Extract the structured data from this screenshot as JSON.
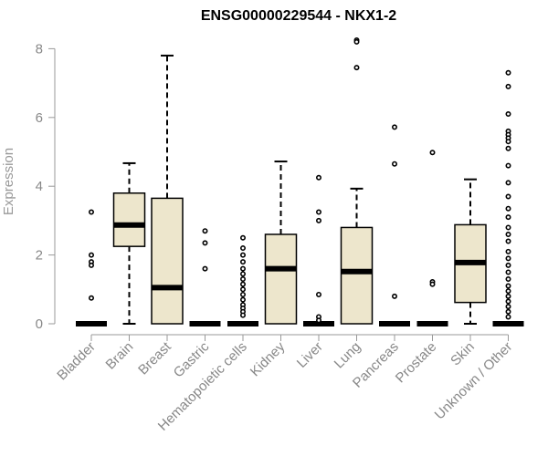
{
  "chart_data": {
    "type": "boxplot",
    "title": "ENSG00000229544 - NKX1-2",
    "xlabel": "",
    "ylabel": "Expression",
    "ylim": [
      0,
      8.2
    ],
    "yticks": [
      0,
      2,
      4,
      6,
      8
    ],
    "grid": false,
    "box_color": "#ede6cc",
    "median_color": "#000000",
    "categories": [
      "Bladder",
      "Brain",
      "Breast",
      "Gastric",
      "Hematopoietic cells",
      "Kidney",
      "Liver",
      "Lung",
      "Pancreas",
      "Prostate",
      "Skin",
      "Unknown / Other"
    ],
    "boxes": [
      {
        "whisker_low": 0,
        "q1": 0,
        "median": 0,
        "q3": 0,
        "whisker_high": 0,
        "outliers": [
          3.25,
          2.0,
          1.8,
          1.7,
          0.75
        ]
      },
      {
        "whisker_low": 0,
        "q1": 2.25,
        "median": 2.87,
        "q3": 3.8,
        "whisker_high": 4.67,
        "outliers": []
      },
      {
        "whisker_low": 0,
        "q1": 0,
        "median": 1.05,
        "q3": 3.65,
        "whisker_high": 7.8,
        "outliers": []
      },
      {
        "whisker_low": 0,
        "q1": 0,
        "median": 0,
        "q3": 0,
        "whisker_high": 0,
        "outliers": [
          2.7,
          2.35,
          1.6
        ]
      },
      {
        "whisker_low": 0,
        "q1": 0,
        "median": 0,
        "q3": 0,
        "whisker_high": 0,
        "outliers": [
          2.5,
          2.2,
          2.0,
          1.8,
          1.6,
          1.45,
          1.3,
          1.15,
          1.0,
          0.85,
          0.7,
          0.55,
          0.45,
          0.35,
          0.25
        ]
      },
      {
        "whisker_low": 0,
        "q1": 0,
        "median": 1.6,
        "q3": 2.6,
        "whisker_high": 4.72,
        "outliers": []
      },
      {
        "whisker_low": 0,
        "q1": 0,
        "median": 0,
        "q3": 0,
        "whisker_high": 0,
        "outliers": [
          4.25,
          3.25,
          3.0,
          0.85,
          0.2,
          0.1
        ]
      },
      {
        "whisker_low": 0,
        "q1": 0,
        "median": 1.52,
        "q3": 2.8,
        "whisker_high": 3.93,
        "outliers": [
          8.25,
          8.2,
          7.45
        ]
      },
      {
        "whisker_low": 0,
        "q1": 0,
        "median": 0,
        "q3": 0,
        "whisker_high": 0,
        "outliers": [
          5.72,
          4.65,
          0.8
        ]
      },
      {
        "whisker_low": 0,
        "q1": 0,
        "median": 0,
        "q3": 0,
        "whisker_high": 0,
        "outliers": [
          4.98,
          1.22,
          1.15
        ]
      },
      {
        "whisker_low": 0,
        "q1": 0.62,
        "median": 1.78,
        "q3": 2.88,
        "whisker_high": 4.2,
        "outliers": []
      },
      {
        "whisker_low": 0,
        "q1": 0,
        "median": 0,
        "q3": 0,
        "whisker_high": 0,
        "outliers": [
          7.3,
          6.9,
          6.1,
          5.6,
          5.5,
          5.4,
          5.3,
          5.1,
          4.6,
          4.1,
          3.7,
          3.35,
          3.1,
          2.8,
          2.6,
          2.4,
          2.1,
          1.9,
          1.7,
          1.5,
          1.3,
          1.1,
          0.95,
          0.8,
          0.65,
          0.5,
          0.35,
          0.2
        ]
      }
    ]
  }
}
